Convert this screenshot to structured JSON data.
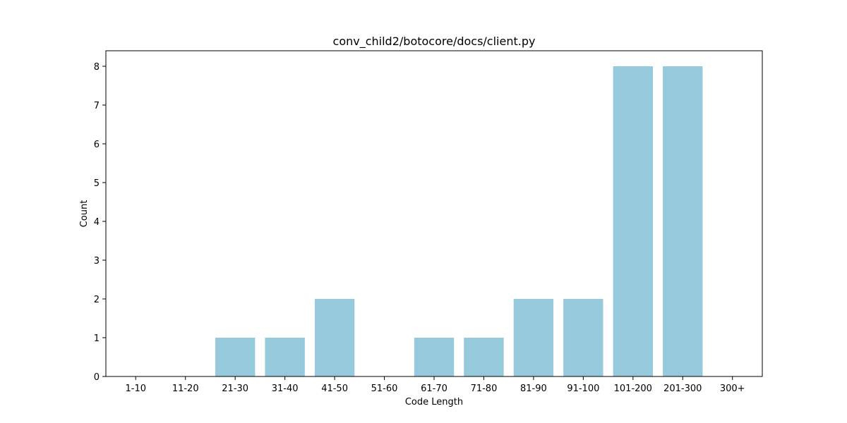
{
  "chart_data": {
    "type": "bar",
    "title": "conv_child2/botocore/docs/client.py",
    "xlabel": "Code Length",
    "ylabel": "Count",
    "categories": [
      "1-10",
      "11-20",
      "21-30",
      "31-40",
      "41-50",
      "51-60",
      "61-70",
      "71-80",
      "81-90",
      "91-100",
      "101-200",
      "201-300",
      "300+"
    ],
    "values": [
      0,
      0,
      1,
      1,
      2,
      0,
      1,
      1,
      2,
      2,
      8,
      8,
      0
    ],
    "ylim": [
      0,
      8.4
    ],
    "yticks": [
      0,
      1,
      2,
      3,
      4,
      5,
      6,
      7,
      8
    ],
    "bar_color": "#96c9dc",
    "grid": false,
    "legend": "none"
  }
}
